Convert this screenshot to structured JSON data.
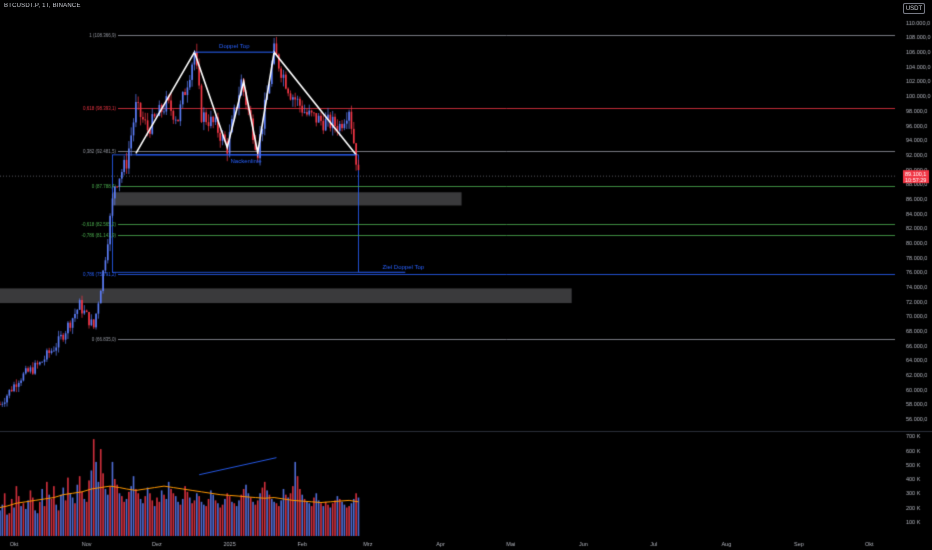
{
  "header": {
    "symbol": "BTCUSDT.P, 1T, BINANCE",
    "currency_button": "USDT"
  },
  "colors": {
    "bull": "#5b7cf5",
    "bear": "#f23645",
    "line_white": "#ffffff",
    "annot_blue": "#2962ff",
    "red_level": "#f23645",
    "green_level": "#4caf50",
    "grey_level": "#9598a1",
    "zone_fill": "#3a3a3c",
    "volume_ma": "#ff9800"
  },
  "chart_data": [
    {
      "type": "candlestick",
      "title": "",
      "x_axis": {
        "labels": [
          "Okt",
          "Nov",
          "Dez",
          "2025",
          "Feb",
          "Mrz",
          "Apr",
          "Mai",
          "Jun",
          "Jul",
          "Aug",
          "Sep",
          "Okt"
        ],
        "start": "2024-09-25",
        "end": "2025-10-12"
      },
      "y_axis": {
        "min": 54500,
        "max": 111200,
        "ticks": [
          56000,
          58000,
          60000,
          62000,
          64000,
          66000,
          68000,
          70000,
          72000,
          74000,
          76000,
          78000,
          80000,
          82000,
          84000,
          86000,
          88000,
          90000,
          92000,
          94000,
          96000,
          98000,
          100000,
          102000,
          104000,
          106000,
          108000,
          110000
        ],
        "tick_labels": [
          "56.000,0",
          "58.000,0",
          "60.000,0",
          "62.000,0",
          "64.000,0",
          "66.000,0",
          "68.000,0",
          "70.000,0",
          "72.000,0",
          "74.000,0",
          "76.000,0",
          "78.000,0",
          "80.000,0",
          "82.000,0",
          "84.000,0",
          "86.000,0",
          "88.000,0",
          "90.000,0",
          "92.000,0",
          "94.000,0",
          "96.000,0",
          "98.000,0",
          "100.000,0",
          "102.000,0",
          "104.000,0",
          "106.000,0",
          "108.000,0",
          "110.000,0"
        ],
        "current_price": 89100,
        "current_price_label": "89.100,1",
        "countdown_label": "10:57:29"
      },
      "price_path": [
        [
          "2024-09-25",
          58000
        ],
        [
          "2024-10-03",
          61500
        ],
        [
          "2024-10-12",
          63500
        ],
        [
          "2024-10-20",
          66500
        ],
        [
          "2024-10-29",
          71500
        ],
        [
          "2024-11-04",
          68500
        ],
        [
          "2024-11-08",
          76000
        ],
        [
          "2024-11-13",
          88000
        ],
        [
          "2024-11-18",
          91000
        ],
        [
          "2024-11-22",
          98500
        ],
        [
          "2024-11-27",
          95500
        ],
        [
          "2024-12-05",
          99000
        ],
        [
          "2024-12-10",
          97000
        ],
        [
          "2024-12-17",
          106000
        ],
        [
          "2024-12-20",
          97500
        ],
        [
          "2024-12-26",
          96000
        ],
        [
          "2024-12-31",
          93000
        ],
        [
          "2025-01-06",
          102000
        ],
        [
          "2025-01-13",
          92500
        ],
        [
          "2025-01-20",
          106000
        ],
        [
          "2025-01-27",
          100500
        ],
        [
          "2025-02-03",
          97500
        ],
        [
          "2025-02-10",
          96500
        ],
        [
          "2025-02-17",
          96000
        ],
        [
          "2025-02-21",
          98500
        ],
        [
          "2025-02-24",
          91500
        ],
        [
          "2025-02-25",
          89100
        ]
      ],
      "drawings": {
        "pattern_polyline": [
          [
            "2024-11-22",
            92200
          ],
          [
            "2024-12-17",
            106000
          ],
          [
            "2024-12-31",
            93000
          ],
          [
            "2025-01-07",
            102000
          ],
          [
            "2025-01-13",
            92300
          ],
          [
            "2025-01-20",
            106000
          ],
          [
            "2025-02-24",
            92000
          ]
        ],
        "neckline": {
          "x0": "2024-11-22",
          "x1": "2025-02-24",
          "y": 92000,
          "label": "Nackenlinie"
        },
        "top_line": {
          "x0": "2024-12-17",
          "x1": "2025-01-20",
          "y": 106000,
          "label": "Doppel Top"
        },
        "target": {
          "x0": "2025-02-25",
          "x1": "2025-03-17",
          "y": 76000,
          "label": "Ziel Doppel Top"
        },
        "measure_box": {
          "x0": "2024-11-12",
          "x1": "2025-02-25",
          "y_top": 92000,
          "y_bottom": 76000
        }
      },
      "levels": [
        {
          "label": "1 (108.366,9)",
          "y": 108367,
          "color": "grey_level"
        },
        {
          "label": "0,618 (98.393,1)",
          "y": 98393,
          "color": "red_level"
        },
        {
          "label": "0,382 (92.481,5)",
          "y": 92482,
          "color": "grey_level"
        },
        {
          "label": "0 (87.788,4)",
          "y": 87788,
          "color": "green_level"
        },
        {
          "label": "-0,618 (82.565,2)",
          "y": 82565,
          "color": "green_level"
        },
        {
          "label": "-0,786 (81.141,9)",
          "y": 81142,
          "color": "green_level"
        },
        {
          "label": "0,786 (75.791,2)",
          "y": 75791,
          "color": "annot_blue"
        },
        {
          "label": "0 (66.835,0)",
          "y": 66835,
          "color": "grey_level"
        }
      ],
      "zones": [
        {
          "x0": "2024-11-12",
          "x1": "2025-04-10",
          "y_top": 86900,
          "y_bottom": 85100
        },
        {
          "x0": "2024-09-25",
          "x1": "2025-05-27",
          "y_top": 73800,
          "y_bottom": 71800
        }
      ]
    },
    {
      "type": "bar",
      "title": "Volume",
      "y_axis": {
        "min": 0,
        "max": 730000,
        "ticks": [
          100000,
          200000,
          300000,
          400000,
          500000,
          600000,
          700000
        ],
        "tick_labels": [
          "100 K",
          "200 K",
          "300 K",
          "400 K",
          "500 K",
          "600 K",
          "700 K"
        ]
      },
      "series": [
        {
          "name": "",
          "values": [
            180000,
            220000,
            300000,
            150000,
            160000,
            260000,
            200000,
            350000,
            280000,
            210000,
            230000,
            190000,
            250000,
            320000,
            270000,
            180000,
            160000,
            240000,
            330000,
            210000,
            380000,
            290000,
            260000,
            350000,
            220000,
            180000,
            290000,
            340000,
            250000,
            410000,
            300000,
            270000,
            230000,
            360000,
            420000,
            310000,
            260000,
            240000,
            390000,
            460000,
            680000,
            520000,
            380000,
            610000,
            440000,
            330000,
            290000,
            350000,
            520000,
            400000,
            360000,
            300000,
            280000,
            240000,
            260000,
            310000,
            350000,
            420000,
            330000,
            300000,
            260000,
            230000,
            280000,
            340000,
            300000,
            250000,
            210000,
            270000,
            240000,
            320000,
            290000,
            260000,
            380000,
            330000,
            300000,
            280000,
            240000,
            220000,
            260000,
            350000,
            310000,
            270000,
            230000,
            250000,
            300000,
            280000,
            240000,
            220000,
            210000,
            260000,
            320000,
            290000,
            250000,
            230000,
            200000,
            220000,
            260000,
            300000,
            280000,
            240000,
            230000,
            210000,
            250000,
            290000,
            330000,
            360000,
            300000,
            270000,
            240000,
            220000,
            250000,
            300000,
            340000,
            380000,
            320000,
            290000,
            260000,
            240000,
            230000,
            210000,
            250000,
            330000,
            290000,
            270000,
            300000,
            350000,
            520000,
            420000,
            330000,
            290000,
            260000,
            240000,
            230000,
            210000,
            270000,
            300000,
            250000,
            230000,
            210000,
            240000,
            220000,
            200000,
            230000,
            250000,
            280000,
            260000,
            240000,
            220000,
            200000,
            210000,
            230000,
            260000,
            300000,
            270000
          ]
        },
        {
          "name": "",
          "values": [
            200000,
            210000,
            230000,
            240000,
            250000,
            260000,
            270000,
            290000,
            300000,
            310000,
            330000,
            340000,
            350000,
            340000,
            330000,
            320000,
            330000,
            340000,
            350000,
            340000,
            330000,
            320000,
            310000,
            300000,
            290000,
            285000,
            280000,
            275000,
            270000,
            265000,
            270000,
            260000,
            250000,
            245000,
            240000,
            235000,
            240000,
            245000,
            250000,
            240000
          ]
        }
      ],
      "annotation_line": {
        "from": [
          "2024-12-19",
          430000
        ],
        "to": [
          "2025-01-21",
          550000
        ]
      }
    }
  ]
}
